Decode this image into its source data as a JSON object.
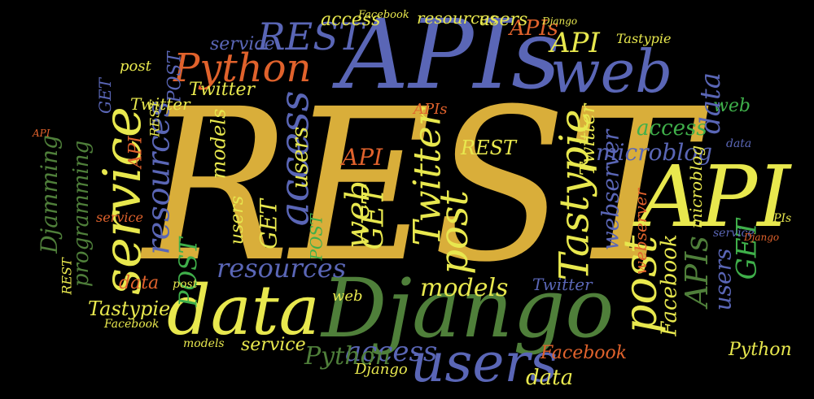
{
  "palette": {
    "background": "#000000",
    "gold": "#D9AE3A",
    "blue": "#5A66B6",
    "green": "#4F7F3A",
    "orange": "#E0622C",
    "yellow": "#E8E84E",
    "lime": "#3FAF4A",
    "steel": "#7B89C9"
  },
  "words": [
    {
      "id": "rest-main",
      "text": "REST",
      "color": "gold"
    },
    {
      "id": "apis-main",
      "text": "APIs",
      "color": "blue"
    },
    {
      "id": "django-main",
      "text": "Django",
      "color": "green"
    },
    {
      "id": "api-right",
      "text": "API",
      "color": "yellow"
    },
    {
      "id": "data-main",
      "text": "data",
      "color": "yellow"
    },
    {
      "id": "users-main",
      "text": "users",
      "color": "blue"
    },
    {
      "id": "web-top",
      "text": "web",
      "color": "blue"
    },
    {
      "id": "python-top",
      "text": "Python",
      "color": "orange"
    },
    {
      "id": "rest-top",
      "text": "REST",
      "color": "blue"
    },
    {
      "id": "service-left",
      "text": "service",
      "color": "yellow"
    },
    {
      "id": "resources-left",
      "text": "resources",
      "color": "blue"
    },
    {
      "id": "access-left",
      "text": "access",
      "color": "blue"
    },
    {
      "id": "twitter-mid",
      "text": "Twitter",
      "color": "yellow"
    },
    {
      "id": "tastypie-mid",
      "text": "Tastypie",
      "color": "yellow"
    },
    {
      "id": "post-mid",
      "text": "post",
      "color": "yellow"
    },
    {
      "id": "post-right",
      "text": "post",
      "color": "yellow"
    },
    {
      "id": "microblog-mid",
      "text": "microblog",
      "color": "blue"
    },
    {
      "id": "models-mid",
      "text": "models",
      "color": "yellow"
    },
    {
      "id": "access-bottom",
      "text": "access",
      "color": "blue"
    },
    {
      "id": "facebook-right",
      "text": "Facebook",
      "color": "yellow"
    },
    {
      "id": "apis-right",
      "text": "APIs",
      "color": "green"
    },
    {
      "id": "gets-right",
      "text": "GET",
      "color": "lime"
    },
    {
      "id": "webserver-mid",
      "text": "webserver",
      "color": "blue"
    },
    {
      "id": "api-top",
      "text": "API",
      "color": "yellow"
    },
    {
      "id": "api-top2",
      "text": "APIs",
      "color": "orange"
    },
    {
      "id": "resources-bottom",
      "text": "resources",
      "color": "blue"
    },
    {
      "id": "programming-left",
      "text": "programming",
      "color": "green"
    },
    {
      "id": "djamming-left",
      "text": "Djamming",
      "color": "green"
    },
    {
      "id": "post-left",
      "text": "POST",
      "color": "lime"
    },
    {
      "id": "tastypie-bottom",
      "text": "Tastypie",
      "color": "yellow"
    },
    {
      "id": "data-bottom",
      "text": "data",
      "color": "yellow"
    },
    {
      "id": "facebook-bottom",
      "text": "Facebook",
      "color": "orange"
    },
    {
      "id": "python-bottom",
      "text": "Python",
      "color": "green"
    },
    {
      "id": "service-bottom",
      "text": "service",
      "color": "yellow"
    },
    {
      "id": "models-right",
      "text": "models",
      "color": "yellow"
    },
    {
      "id": "access-right",
      "text": "access",
      "color": "lime"
    },
    {
      "id": "web-right",
      "text": "web",
      "color": "lime"
    },
    {
      "id": "data-top",
      "text": "data",
      "color": "blue"
    },
    {
      "id": "twitter-right",
      "text": "Twitter",
      "color": "yellow"
    },
    {
      "id": "access-top",
      "text": "access",
      "color": "yellow"
    },
    {
      "id": "facebook-top",
      "text": "Facebook",
      "color": "yellow"
    },
    {
      "id": "resources-top",
      "text": "resources",
      "color": "yellow"
    },
    {
      "id": "users-top",
      "text": "users",
      "color": "yellow"
    },
    {
      "id": "django-top",
      "text": "Django",
      "color": "yellow"
    },
    {
      "id": "service-top",
      "text": "service",
      "color": "blue"
    },
    {
      "id": "tastypie-top",
      "text": "Tastypie",
      "color": "yellow"
    },
    {
      "id": "post-top",
      "text": "post",
      "color": "yellow"
    },
    {
      "id": "post2-top",
      "text": "POST",
      "color": "blue"
    },
    {
      "id": "get-top",
      "text": "GET",
      "color": "blue"
    },
    {
      "id": "twitter-top",
      "text": "Twitter",
      "color": "yellow"
    },
    {
      "id": "rest-right",
      "text": "REST",
      "color": "yellow"
    },
    {
      "id": "api-mid",
      "text": "API",
      "color": "orange"
    },
    {
      "id": "web-mid",
      "text": "web",
      "color": "yellow"
    },
    {
      "id": "get-mid",
      "text": "GET",
      "color": "yellow"
    },
    {
      "id": "users-mid",
      "text": "users",
      "color": "yellow"
    },
    {
      "id": "access-mid",
      "text": "access",
      "color": "yellow"
    },
    {
      "id": "data-right",
      "text": "data",
      "color": "blue"
    },
    {
      "id": "twitter-bottom",
      "text": "Twitter",
      "color": "blue"
    },
    {
      "id": "django-bottom",
      "text": "Django",
      "color": "yellow"
    },
    {
      "id": "models-bottom",
      "text": "models",
      "color": "yellow"
    },
    {
      "id": "service-right",
      "text": "service",
      "color": "blue"
    },
    {
      "id": "python-right",
      "text": "Python",
      "color": "yellow"
    },
    {
      "id": "webserver-right",
      "text": "webserver",
      "color": "orange"
    },
    {
      "id": "microblog-right",
      "text": "microblog",
      "color": "yellow"
    },
    {
      "id": "api-left",
      "text": "API",
      "color": "orange"
    },
    {
      "id": "rest-left",
      "text": "REST",
      "color": "yellow"
    },
    {
      "id": "users-left",
      "text": "users",
      "color": "yellow"
    },
    {
      "id": "web-left",
      "text": "web",
      "color": "yellow"
    },
    {
      "id": "get-left",
      "text": "GET",
      "color": "yellow"
    },
    {
      "id": "post-left2",
      "text": "POST",
      "color": "lime"
    },
    {
      "id": "data-left",
      "text": "data",
      "color": "orange"
    },
    {
      "id": "models-left",
      "text": "models",
      "color": "yellow"
    },
    {
      "id": "rest-mid",
      "text": "REST",
      "color": "orange"
    },
    {
      "id": "apis-mid",
      "text": "APIs",
      "color": "orange"
    },
    {
      "id": "service-mid",
      "text": "service",
      "color": "orange"
    },
    {
      "id": "users-right",
      "text": "users",
      "color": "blue"
    },
    {
      "id": "post-bottom",
      "text": "post",
      "color": "yellow"
    },
    {
      "id": "rest-bottom",
      "text": "REST",
      "color": "yellow"
    },
    {
      "id": "twitter-left",
      "text": "Twitter",
      "color": "yellow"
    },
    {
      "id": "api-small",
      "text": "API",
      "color": "orange"
    },
    {
      "id": "apis-small",
      "text": "APIs",
      "color": "yellow"
    },
    {
      "id": "django-small",
      "text": "Django",
      "color": "orange"
    },
    {
      "id": "facebook-small",
      "text": "Facebook",
      "color": "yellow"
    }
  ]
}
